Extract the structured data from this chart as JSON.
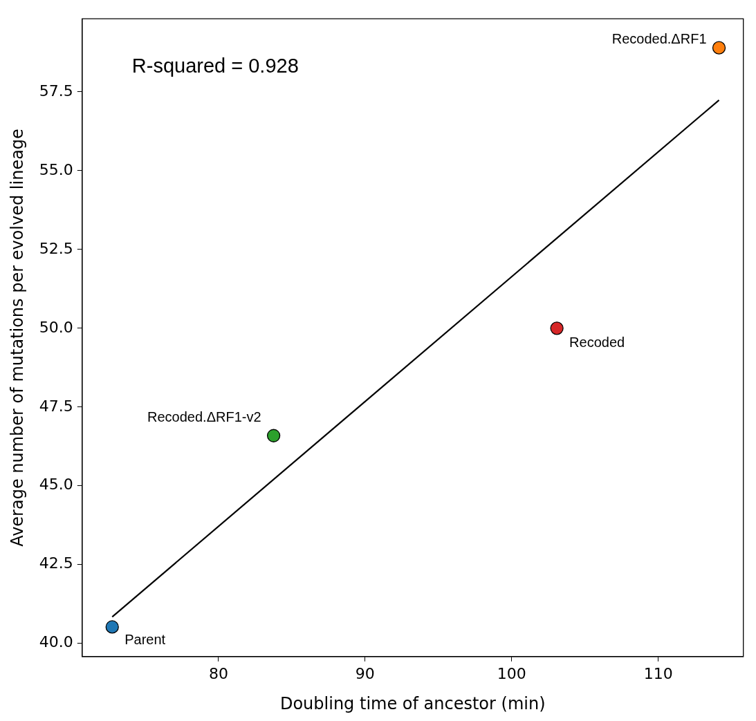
{
  "chart_data": {
    "type": "scatter",
    "xlabel": "Doubling time of ancestor (min)",
    "ylabel": "Average number of mutations per evolved lineage",
    "xlim": [
      70.7,
      115.8
    ],
    "xticks": [
      80,
      90,
      100,
      110
    ],
    "ylim": [
      39.58,
      59.82
    ],
    "yticks": [
      {
        "value": 40,
        "label": "40.0"
      },
      {
        "value": 42.5,
        "label": "42.5"
      },
      {
        "value": 45,
        "label": "45.0"
      },
      {
        "value": 47.5,
        "label": "47.5"
      },
      {
        "value": 50,
        "label": "50.0"
      },
      {
        "value": 52.5,
        "label": "52.5"
      },
      {
        "value": 55,
        "label": "55.0"
      },
      {
        "value": 57.5,
        "label": "57.5"
      }
    ],
    "grid": false,
    "legend": false,
    "marker": "circle",
    "annotations": [
      "R-squared = 0.928"
    ],
    "series": [
      {
        "name": "Parent",
        "color": "#1f77b4",
        "x": [
          72.75
        ],
        "values": [
          40.52
        ]
      },
      {
        "name": "Recoded.ΔRF1",
        "color": "#ff7f0e",
        "x": [
          114.14
        ],
        "values": [
          58.9
        ]
      },
      {
        "name": "Recoded.ΔRF1-v2",
        "color": "#2ca02c",
        "x": [
          83.76
        ],
        "values": [
          46.59
        ]
      },
      {
        "name": "Recoded",
        "color": "#d62728",
        "x": [
          103.08
        ],
        "values": [
          50.0
        ]
      },
      {
        "type": "line",
        "color": "#000000",
        "x": [
          72.75,
          114.14
        ],
        "values": [
          40.84,
          57.24
        ],
        "line_style": "solid",
        "marker": "none"
      }
    ]
  }
}
